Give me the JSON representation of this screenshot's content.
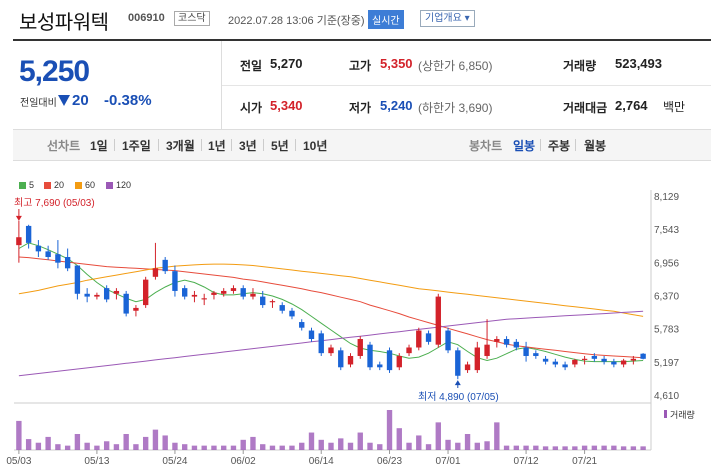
{
  "header": {
    "name": "보성파워텍",
    "code": "006910",
    "market": "코스닥",
    "datetime": "2022.07.28 13:06 기준(장중)",
    "realtime_badge": "실시간",
    "company_info_button": "기업개요 ▾"
  },
  "price": {
    "current": "5,250",
    "change_label": "전일대비",
    "change_value": "20",
    "change_pct": "-0.38%"
  },
  "stats": {
    "prev_close_label": "전일",
    "prev_close": "5,270",
    "high_label": "고가",
    "high": "5,350",
    "upper_limit": "(상한가 6,850)",
    "volume_label": "거래량",
    "volume": "523,493",
    "open_label": "시가",
    "open": "5,340",
    "low_label": "저가",
    "low": "5,240",
    "lower_limit": "(하한가 3,690)",
    "trade_value_label": "거래대금",
    "trade_value": "2,764",
    "trade_value_unit": "백만"
  },
  "periods": {
    "line_label": "선차트",
    "line_items": [
      "1일",
      "1주일",
      "3개월",
      "1년",
      "3년",
      "5년",
      "10년"
    ],
    "candle_label": "봉차트",
    "candle_items": [
      "일봉",
      "주봉",
      "월봉"
    ],
    "selected_candle": "일봉"
  },
  "legend": [
    {
      "name": "5",
      "color": "#4caf50"
    },
    {
      "name": "20",
      "color": "#e74c3c"
    },
    {
      "name": "60",
      "color": "#f39c12"
    },
    {
      "name": "120",
      "color": "#9b59b6"
    }
  ],
  "annotations": {
    "high_text": "최고 7,690 (05/03)",
    "low_text": "최저 4,890 (07/05)",
    "volume_label": "거래량"
  },
  "colors": {
    "up": "#d3222a",
    "down": "#1a64d6"
  },
  "chart_data": {
    "type": "candlestick",
    "y_ticks": [
      "8,129",
      "7,543",
      "6,956",
      "6,370",
      "5,783",
      "5,197",
      "4,610"
    ],
    "y_range": [
      4610,
      8129
    ],
    "x_labels": [
      "05/03",
      "05/13",
      "05/24",
      "06/02",
      "06/14",
      "06/23",
      "07/01",
      "07/12",
      "07/21"
    ],
    "x_label_index": [
      0,
      8,
      16,
      23,
      31,
      38,
      44,
      52,
      58
    ],
    "candles": [
      {
        "o": 7260,
        "h": 7690,
        "l": 6950,
        "c": 7400
      },
      {
        "o": 7600,
        "h": 7620,
        "l": 7200,
        "c": 7300
      },
      {
        "o": 7250,
        "h": 7350,
        "l": 7050,
        "c": 7150
      },
      {
        "o": 7150,
        "h": 7250,
        "l": 7000,
        "c": 7050
      },
      {
        "o": 7100,
        "h": 7350,
        "l": 6850,
        "c": 6950
      },
      {
        "o": 7050,
        "h": 7200,
        "l": 6800,
        "c": 6850
      },
      {
        "o": 6900,
        "h": 6900,
        "l": 6300,
        "c": 6400
      },
      {
        "o": 6400,
        "h": 6500,
        "l": 6250,
        "c": 6350
      },
      {
        "o": 6350,
        "h": 6420,
        "l": 6300,
        "c": 6380
      },
      {
        "o": 6500,
        "h": 6550,
        "l": 6250,
        "c": 6300
      },
      {
        "o": 6400,
        "h": 6500,
        "l": 6300,
        "c": 6450
      },
      {
        "o": 6400,
        "h": 6450,
        "l": 6000,
        "c": 6050
      },
      {
        "o": 6100,
        "h": 6200,
        "l": 6000,
        "c": 6150
      },
      {
        "o": 6200,
        "h": 6700,
        "l": 6150,
        "c": 6650
      },
      {
        "o": 6700,
        "h": 7300,
        "l": 6650,
        "c": 6850
      },
      {
        "o": 7000,
        "h": 7050,
        "l": 6750,
        "c": 6800
      },
      {
        "o": 6800,
        "h": 6900,
        "l": 6350,
        "c": 6450
      },
      {
        "o": 6500,
        "h": 6550,
        "l": 6300,
        "c": 6350
      },
      {
        "o": 6350,
        "h": 6450,
        "l": 6250,
        "c": 6380
      },
      {
        "o": 6300,
        "h": 6400,
        "l": 6200,
        "c": 6320
      },
      {
        "o": 6380,
        "h": 6450,
        "l": 6300,
        "c": 6420
      },
      {
        "o": 6400,
        "h": 6500,
        "l": 6350,
        "c": 6450
      },
      {
        "o": 6450,
        "h": 6550,
        "l": 6400,
        "c": 6500
      },
      {
        "o": 6500,
        "h": 6550,
        "l": 6300,
        "c": 6350
      },
      {
        "o": 6350,
        "h": 6500,
        "l": 6300,
        "c": 6400
      },
      {
        "o": 6350,
        "h": 6450,
        "l": 6150,
        "c": 6200
      },
      {
        "o": 6250,
        "h": 6300,
        "l": 6150,
        "c": 6270
      },
      {
        "o": 6200,
        "h": 6250,
        "l": 6050,
        "c": 6100
      },
      {
        "o": 6100,
        "h": 6150,
        "l": 5950,
        "c": 6000
      },
      {
        "o": 5900,
        "h": 5950,
        "l": 5750,
        "c": 5800
      },
      {
        "o": 5750,
        "h": 5800,
        "l": 5550,
        "c": 5600
      },
      {
        "o": 5700,
        "h": 5750,
        "l": 5300,
        "c": 5350
      },
      {
        "o": 5350,
        "h": 5500,
        "l": 5300,
        "c": 5450
      },
      {
        "o": 5400,
        "h": 5450,
        "l": 5050,
        "c": 5100
      },
      {
        "o": 5150,
        "h": 5350,
        "l": 5100,
        "c": 5300
      },
      {
        "o": 5300,
        "h": 5650,
        "l": 5250,
        "c": 5600
      },
      {
        "o": 5500,
        "h": 5550,
        "l": 5050,
        "c": 5100
      },
      {
        "o": 5150,
        "h": 5200,
        "l": 5050,
        "c": 5100
      },
      {
        "o": 5400,
        "h": 5450,
        "l": 5000,
        "c": 5050
      },
      {
        "o": 5100,
        "h": 5350,
        "l": 5050,
        "c": 5300
      },
      {
        "o": 5350,
        "h": 5500,
        "l": 5300,
        "c": 5450
      },
      {
        "o": 5450,
        "h": 5800,
        "l": 5400,
        "c": 5750
      },
      {
        "o": 5700,
        "h": 5750,
        "l": 5500,
        "c": 5550
      },
      {
        "o": 5500,
        "h": 6400,
        "l": 5450,
        "c": 6350
      },
      {
        "o": 5750,
        "h": 5800,
        "l": 5350,
        "c": 5400
      },
      {
        "o": 5400,
        "h": 5450,
        "l": 4890,
        "c": 4950
      },
      {
        "o": 5050,
        "h": 5200,
        "l": 5000,
        "c": 5150
      },
      {
        "o": 5050,
        "h": 5550,
        "l": 5000,
        "c": 5450
      },
      {
        "o": 5300,
        "h": 5950,
        "l": 5250,
        "c": 5500
      },
      {
        "o": 5550,
        "h": 5650,
        "l": 5450,
        "c": 5600
      },
      {
        "o": 5600,
        "h": 5650,
        "l": 5450,
        "c": 5500
      },
      {
        "o": 5550,
        "h": 5600,
        "l": 5400,
        "c": 5450
      },
      {
        "o": 5450,
        "h": 5550,
        "l": 5200,
        "c": 5300
      },
      {
        "o": 5350,
        "h": 5400,
        "l": 5250,
        "c": 5300
      },
      {
        "o": 5250,
        "h": 5300,
        "l": 5150,
        "c": 5200
      },
      {
        "o": 5200,
        "h": 5250,
        "l": 5100,
        "c": 5150
      },
      {
        "o": 5150,
        "h": 5200,
        "l": 5050,
        "c": 5100
      },
      {
        "o": 5150,
        "h": 5250,
        "l": 5100,
        "c": 5230
      },
      {
        "o": 5230,
        "h": 5300,
        "l": 5150,
        "c": 5250
      },
      {
        "o": 5300,
        "h": 5350,
        "l": 5200,
        "c": 5250
      },
      {
        "o": 5250,
        "h": 5300,
        "l": 5150,
        "c": 5200
      },
      {
        "o": 5200,
        "h": 5250,
        "l": 5100,
        "c": 5150
      },
      {
        "o": 5150,
        "h": 5250,
        "l": 5100,
        "c": 5220
      },
      {
        "o": 5220,
        "h": 5300,
        "l": 5150,
        "c": 5250
      },
      {
        "o": 5340,
        "h": 5350,
        "l": 5240,
        "c": 5250
      }
    ],
    "ma": {
      "5": [
        7200,
        7300,
        7250,
        7180,
        7100,
        7020,
        6900,
        6740,
        6600,
        6480,
        6400,
        6320,
        6260,
        6300,
        6420,
        6520,
        6600,
        6640,
        6600,
        6520,
        6420,
        6380,
        6380,
        6400,
        6420,
        6400,
        6360,
        6300,
        6220,
        6120,
        6000,
        5880,
        5760,
        5640,
        5520,
        5440,
        5400,
        5380,
        5350,
        5300,
        5260,
        5280,
        5350,
        5450,
        5550,
        5500,
        5380,
        5270,
        5220,
        5260,
        5340,
        5420,
        5450,
        5420,
        5380,
        5330,
        5280,
        5240,
        5210,
        5200,
        5200,
        5200,
        5200,
        5210,
        5220
      ],
      "20": [
        7050,
        7040,
        7020,
        7000,
        6980,
        6960,
        6940,
        6920,
        6900,
        6880,
        6870,
        6860,
        6850,
        6840,
        6830,
        6820,
        6810,
        6790,
        6770,
        6750,
        6730,
        6710,
        6690,
        6660,
        6640,
        6610,
        6580,
        6550,
        6520,
        6490,
        6450,
        6420,
        6380,
        6340,
        6300,
        6260,
        6200,
        6150,
        6100,
        6050,
        5990,
        5940,
        5890,
        5840,
        5790,
        5740,
        5690,
        5640,
        5590,
        5550,
        5510,
        5480,
        5460,
        5440,
        5420,
        5400,
        5380,
        5360,
        5340,
        5320,
        5310,
        5300,
        5290,
        5280,
        5270
      ],
      "60": [
        6400,
        6430,
        6460,
        6500,
        6540,
        6570,
        6600,
        6640,
        6670,
        6700,
        6730,
        6760,
        6790,
        6820,
        6850,
        6870,
        6890,
        6900,
        6910,
        6920,
        6925,
        6925,
        6920,
        6910,
        6900,
        6880,
        6860,
        6840,
        6820,
        6800,
        6780,
        6760,
        6740,
        6720,
        6700,
        6670,
        6640,
        6610,
        6580,
        6550,
        6520,
        6490,
        6470,
        6450,
        6430,
        6410,
        6390,
        6370,
        6350,
        6330,
        6310,
        6290,
        6270,
        6250,
        6230,
        6210,
        6190,
        6170,
        6150,
        6130,
        6110,
        6090,
        6060,
        6030,
        6000
      ],
      "120": [
        4950,
        4970,
        4990,
        5010,
        5030,
        5050,
        5070,
        5090,
        5110,
        5130,
        5150,
        5170,
        5190,
        5210,
        5230,
        5250,
        5270,
        5290,
        5310,
        5330,
        5350,
        5370,
        5390,
        5410,
        5430,
        5450,
        5470,
        5490,
        5510,
        5530,
        5550,
        5570,
        5590,
        5610,
        5630,
        5650,
        5670,
        5690,
        5710,
        5730,
        5750,
        5770,
        5790,
        5810,
        5830,
        5850,
        5870,
        5890,
        5910,
        5930,
        5950,
        5960,
        5970,
        5980,
        5990,
        6000,
        6010,
        6020,
        6030,
        6040,
        6050,
        6060,
        6070,
        6080,
        6090
      ]
    },
    "volume": [
      40,
      15,
      10,
      18,
      8,
      6,
      22,
      10,
      6,
      12,
      8,
      22,
      8,
      18,
      28,
      20,
      10,
      8,
      6,
      6,
      6,
      6,
      6,
      14,
      18,
      8,
      6,
      6,
      6,
      10,
      24,
      14,
      10,
      16,
      10,
      24,
      10,
      8,
      55,
      30,
      10,
      20,
      8,
      38,
      14,
      10,
      22,
      10,
      12,
      38,
      6,
      6,
      6,
      6,
      5,
      5,
      5,
      5,
      6,
      6,
      6,
      6,
      5,
      5,
      5
    ]
  }
}
